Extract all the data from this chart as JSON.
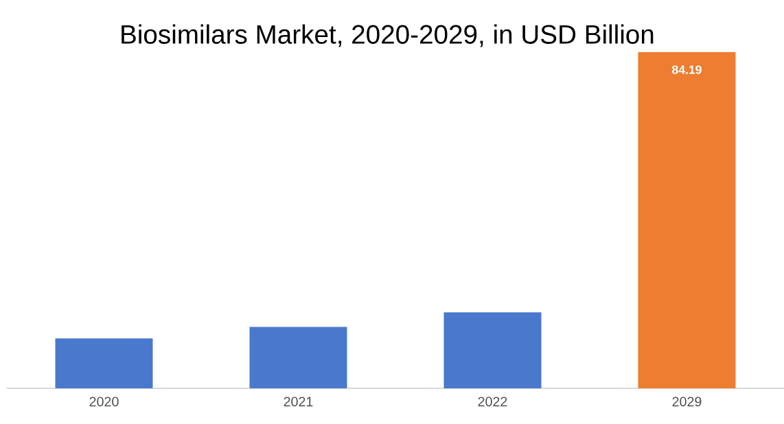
{
  "chart_data": {
    "type": "bar",
    "title": "Biosimilars Market, 2020-2029, in USD Billion",
    "categories": [
      "2020",
      "2021",
      "2022",
      "2029"
    ],
    "values": [
      12.49,
      15.38,
      19.03,
      84.19
    ],
    "colors": [
      "#4a78cc",
      "#4a78cc",
      "#4a78cc",
      "#ed7d31"
    ],
    "value_labels": [
      null,
      null,
      null,
      "84.19"
    ]
  }
}
